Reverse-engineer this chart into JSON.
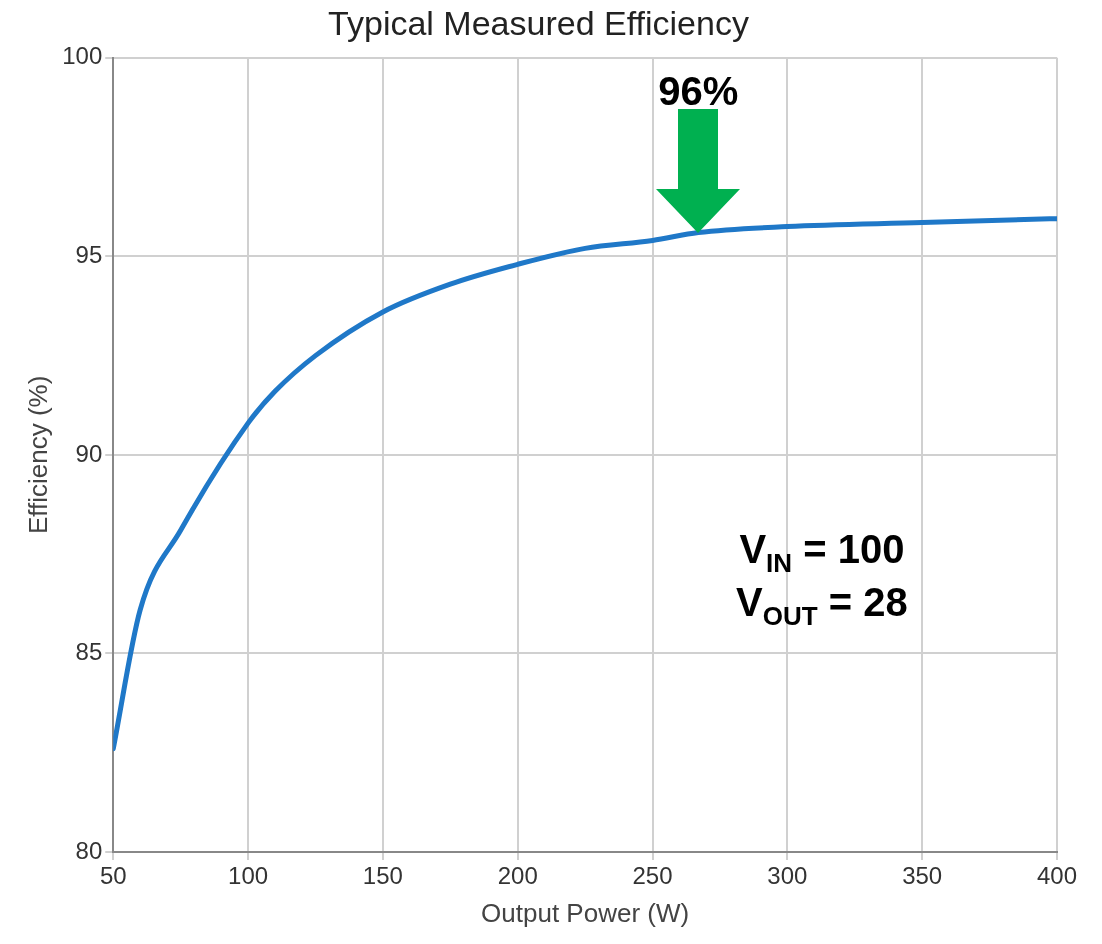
{
  "chart_data": {
    "type": "line",
    "title": "Typical Measured Efficiency",
    "xlabel": "Output Power (W)",
    "ylabel": "Efficiency (%)",
    "x": [
      50,
      60,
      75,
      100,
      110,
      125,
      150,
      175,
      200,
      225,
      250,
      267,
      300,
      350,
      400
    ],
    "series": [
      {
        "color": "#1f78c8",
        "values": [
          82.6,
          86.1,
          88.1,
          90.8,
          91.6,
          92.5,
          93.6,
          94.3,
          94.8,
          95.2,
          95.4,
          95.6,
          95.75,
          95.85,
          95.95
        ]
      }
    ],
    "xlim": [
      50,
      400
    ],
    "xticks": [
      50,
      100,
      150,
      200,
      250,
      300,
      350,
      400
    ],
    "ylim": [
      80,
      100
    ],
    "yticks": [
      80,
      85,
      90,
      95,
      100
    ],
    "grid": true,
    "legend": false,
    "marker": "none",
    "line_style": "solid",
    "annotations": [
      {
        "text": "96%",
        "x": 267,
        "y": 95.6
      },
      "V$_{IN}$ = 100",
      "V$_{OUT}$ = 28"
    ]
  }
}
